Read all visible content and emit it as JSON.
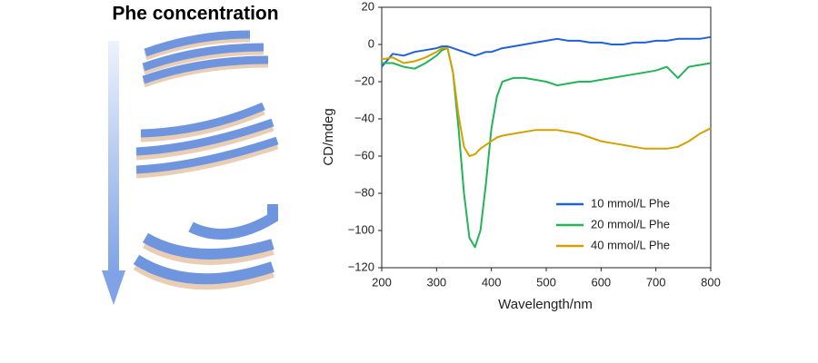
{
  "illustration": {
    "title": "Phe concentration"
  },
  "chart_data": {
    "type": "line",
    "xlabel": "Wavelength/nm",
    "ylabel": "CD/mdeg",
    "x": [
      200,
      220,
      240,
      260,
      280,
      300,
      310,
      320,
      330,
      340,
      350,
      360,
      370,
      380,
      390,
      400,
      410,
      420,
      440,
      460,
      480,
      500,
      520,
      540,
      560,
      580,
      600,
      620,
      640,
      660,
      680,
      700,
      720,
      740,
      760,
      780,
      800
    ],
    "series": [
      {
        "name": "10 mmol/L Phe",
        "color": "#1f62d6",
        "values": [
          -12,
          -5,
          -6,
          -4,
          -3,
          -2,
          -1,
          -1,
          -2,
          -3,
          -4,
          -5,
          -6,
          -5,
          -4,
          -4,
          -3,
          -2,
          -1,
          0,
          1,
          2,
          3,
          2,
          2,
          1,
          1,
          0,
          0,
          1,
          1,
          2,
          2,
          3,
          3,
          3,
          4
        ]
      },
      {
        "name": "20 mmol/L Phe",
        "color": "#22b456",
        "values": [
          -10,
          -10,
          -12,
          -13,
          -10,
          -6,
          -3,
          -2,
          -15,
          -45,
          -80,
          -104,
          -109,
          -100,
          -75,
          -45,
          -28,
          -20,
          -18,
          -18,
          -19,
          -20,
          -22,
          -21,
          -20,
          -20,
          -19,
          -18,
          -17,
          -16,
          -15,
          -14,
          -12,
          -18,
          -12,
          -11,
          -10
        ]
      },
      {
        "name": "40 mmol/L Phe",
        "color": "#d4a000",
        "values": [
          -8,
          -7,
          -10,
          -9,
          -7,
          -4,
          -2,
          -2,
          -15,
          -38,
          -55,
          -60,
          -59,
          -56,
          -54,
          -52,
          -50,
          -49,
          -48,
          -47,
          -46,
          -46,
          -46,
          -47,
          -48,
          -50,
          -52,
          -53,
          -54,
          -55,
          -56,
          -56,
          -56,
          -55,
          -52,
          -48,
          -45
        ]
      }
    ],
    "xlim": [
      200,
      800
    ],
    "xticks": [
      200,
      300,
      400,
      500,
      600,
      700,
      800
    ],
    "ylim": [
      -120,
      20
    ],
    "yticks": [
      20,
      0,
      {
        "value": -20,
        "label": "−20"
      },
      {
        "value": -40,
        "label": "−40"
      },
      {
        "value": -60,
        "label": "−60"
      },
      {
        "value": -80,
        "label": "−80"
      },
      {
        "value": -100,
        "label": "−100"
      },
      {
        "value": -120,
        "label": "−120"
      }
    ],
    "legend": "lower right"
  }
}
